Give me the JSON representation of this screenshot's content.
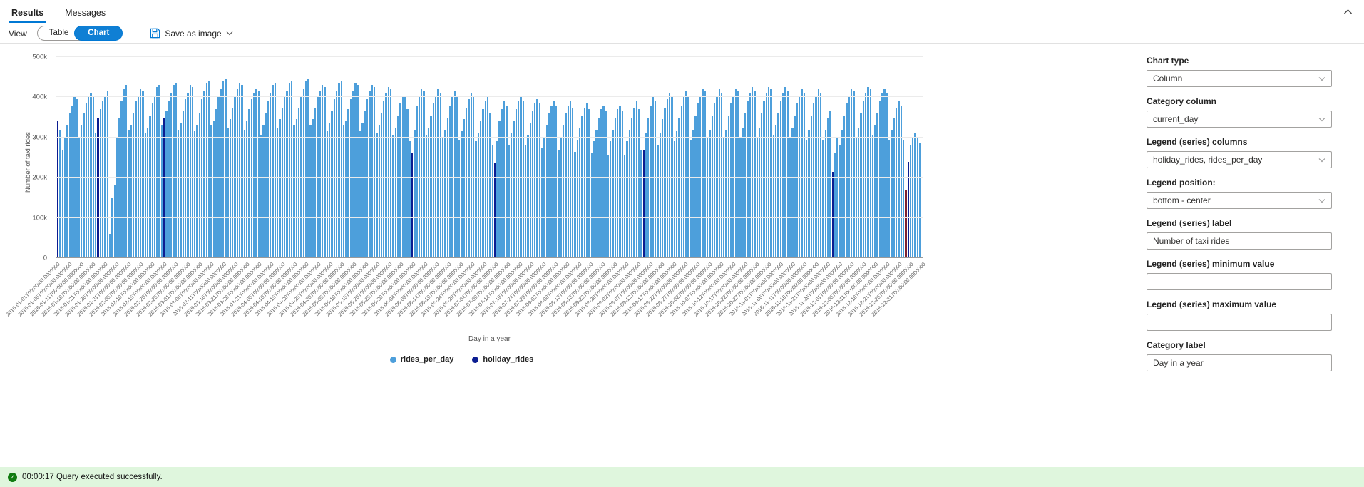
{
  "tabs": {
    "results": "Results",
    "messages": "Messages"
  },
  "toolbar": {
    "view_label": "View",
    "table_label": "Table",
    "chart_label": "Chart",
    "save_as_image": "Save as image"
  },
  "settings": {
    "chart_type": {
      "label": "Chart type",
      "value": "Column"
    },
    "category_column": {
      "label": "Category column",
      "value": "current_day"
    },
    "legend_columns": {
      "label": "Legend (series) columns",
      "value": "holiday_rides, rides_per_day"
    },
    "legend_position": {
      "label": "Legend position:",
      "value": "bottom - center"
    },
    "legend_label": {
      "label": "Legend (series) label",
      "value": "Number of taxi rides"
    },
    "legend_min": {
      "label": "Legend (series) minimum value",
      "value": ""
    },
    "legend_max": {
      "label": "Legend (series) maximum value",
      "value": ""
    },
    "category_label": {
      "label": "Category label",
      "value": "Day in a year"
    }
  },
  "status": {
    "message": "00:00:17 Query executed successfully."
  },
  "accent_colors": {
    "primary": "#0078d4",
    "status_bg": "#dff6dd",
    "status_icon_green": "#107c10"
  },
  "chart_data": {
    "type": "bar",
    "title": "",
    "xlabel": "Day in a year",
    "ylabel": "Number of taxi rides",
    "ylim_k": [
      0,
      500
    ],
    "values_unit": "thousands of taxi rides (k), estimated from pixel heights",
    "y_ticks": [
      "0",
      "100k",
      "200k",
      "300k",
      "400k",
      "500k"
    ],
    "grid": true,
    "legend_position": "bottom-center",
    "x_tick_step_days": 5,
    "x_tick_suffix": "T00:00:00.0000000",
    "x_tick_dates": [
      "2016-01-01",
      "2016-01-06",
      "2016-01-11",
      "2016-01-16",
      "2016-01-21",
      "2016-01-26",
      "2016-01-31",
      "2016-02-05",
      "2016-02-10",
      "2016-02-15",
      "2016-02-20",
      "2016-02-25",
      "2016-03-01",
      "2016-03-06",
      "2016-03-11",
      "2016-03-16",
      "2016-03-21",
      "2016-03-26",
      "2016-03-31",
      "2016-04-05",
      "2016-04-10",
      "2016-04-15",
      "2016-04-20",
      "2016-04-25",
      "2016-04-30",
      "2016-05-05",
      "2016-05-10",
      "2016-05-15",
      "2016-05-20",
      "2016-05-25",
      "2016-05-30",
      "2016-06-04",
      "2016-06-09",
      "2016-06-14",
      "2016-06-19",
      "2016-06-24",
      "2016-06-29",
      "2016-07-04",
      "2016-07-09",
      "2016-07-14",
      "2016-07-19",
      "2016-07-24",
      "2016-07-29",
      "2016-08-03",
      "2016-08-08",
      "2016-08-13",
      "2016-08-18",
      "2016-08-23",
      "2016-08-28",
      "2016-09-02",
      "2016-09-07",
      "2016-09-12",
      "2016-09-17",
      "2016-09-22",
      "2016-09-27",
      "2016-10-02",
      "2016-10-07",
      "2016-10-12",
      "2016-10-17",
      "2016-10-22",
      "2016-10-27",
      "2016-11-01",
      "2016-11-06",
      "2016-11-11",
      "2016-11-16",
      "2016-11-21",
      "2016-11-26",
      "2016-12-01",
      "2016-12-06",
      "2016-12-11",
      "2016-12-16",
      "2016-12-21",
      "2016-12-26",
      "2016-12-31"
    ],
    "series": [
      {
        "name": "rides_per_day",
        "color": "#4d9fdb",
        "values_k": [
          341,
          320,
          270,
          300,
          330,
          360,
          380,
          400,
          395,
          300,
          330,
          360,
          385,
          400,
          410,
          400,
          310,
          350,
          370,
          390,
          405,
          415,
          60,
          150,
          180,
          300,
          350,
          390,
          420,
          430,
          320,
          330,
          360,
          390,
          405,
          420,
          415,
          310,
          325,
          355,
          385,
          400,
          425,
          430,
          330,
          350,
          365,
          390,
          410,
          430,
          435,
          320,
          335,
          365,
          395,
          410,
          430,
          425,
          315,
          330,
          360,
          395,
          415,
          435,
          440,
          330,
          340,
          370,
          400,
          420,
          440,
          445,
          325,
          345,
          375,
          400,
          420,
          435,
          430,
          320,
          340,
          370,
          395,
          410,
          420,
          415,
          305,
          330,
          360,
          390,
          410,
          430,
          435,
          325,
          345,
          375,
          400,
          415,
          435,
          440,
          330,
          345,
          375,
          405,
          420,
          440,
          445,
          330,
          345,
          375,
          400,
          415,
          430,
          425,
          315,
          335,
          365,
          395,
          415,
          435,
          440,
          330,
          340,
          370,
          395,
          415,
          435,
          430,
          315,
          335,
          365,
          395,
          415,
          430,
          425,
          310,
          330,
          360,
          390,
          410,
          425,
          420,
          305,
          325,
          355,
          385,
          400,
          405,
          370,
          290,
          260,
          320,
          380,
          405,
          420,
          415,
          305,
          325,
          355,
          385,
          405,
          420,
          410,
          300,
          320,
          350,
          380,
          400,
          415,
          405,
          295,
          315,
          345,
          375,
          395,
          410,
          400,
          290,
          310,
          340,
          370,
          390,
          400,
          360,
          280,
          235,
          290,
          340,
          370,
          390,
          380,
          280,
          310,
          340,
          370,
          390,
          400,
          390,
          280,
          305,
          335,
          365,
          385,
          395,
          385,
          275,
          300,
          330,
          360,
          380,
          390,
          380,
          270,
          300,
          330,
          360,
          380,
          390,
          375,
          265,
          295,
          325,
          355,
          375,
          385,
          370,
          260,
          290,
          320,
          350,
          370,
          380,
          365,
          255,
          290,
          320,
          350,
          370,
          380,
          365,
          255,
          290,
          320,
          350,
          375,
          390,
          370,
          270,
          270,
          310,
          350,
          380,
          400,
          390,
          280,
          310,
          345,
          375,
          395,
          410,
          400,
          290,
          315,
          350,
          380,
          400,
          415,
          405,
          295,
          320,
          355,
          385,
          405,
          420,
          415,
          300,
          320,
          355,
          385,
          405,
          420,
          410,
          300,
          320,
          355,
          385,
          405,
          420,
          415,
          300,
          325,
          360,
          390,
          410,
          425,
          415,
          300,
          325,
          360,
          390,
          410,
          425,
          420,
          305,
          330,
          360,
          390,
          410,
          425,
          415,
          300,
          325,
          355,
          385,
          405,
          420,
          410,
          295,
          320,
          355,
          385,
          405,
          420,
          410,
          295,
          320,
          350,
          365,
          215,
          260,
          300,
          280,
          320,
          355,
          385,
          405,
          420,
          415,
          300,
          325,
          360,
          390,
          410,
          425,
          420,
          305,
          330,
          360,
          390,
          410,
          420,
          410,
          295,
          320,
          350,
          375,
          390,
          380,
          295,
          170,
          240,
          280,
          300,
          310,
          300,
          285
        ]
      },
      {
        "name": "holiday_rides",
        "color": "#0b1d91",
        "indices": [
          0,
          17,
          45,
          150,
          185,
          248,
          328,
          360
        ],
        "dates": [
          "2016-01-01",
          "2016-01-18",
          "2016-02-15",
          "2016-05-30",
          "2016-07-04",
          "2016-09-05",
          "2016-11-24",
          "2016-12-26"
        ],
        "values_k": [
          341,
          350,
          350,
          260,
          235,
          270,
          215,
          240
        ]
      }
    ],
    "special_bars": [
      {
        "index": 359,
        "date": "2016-12-25",
        "color": "#7e2230"
      }
    ]
  }
}
